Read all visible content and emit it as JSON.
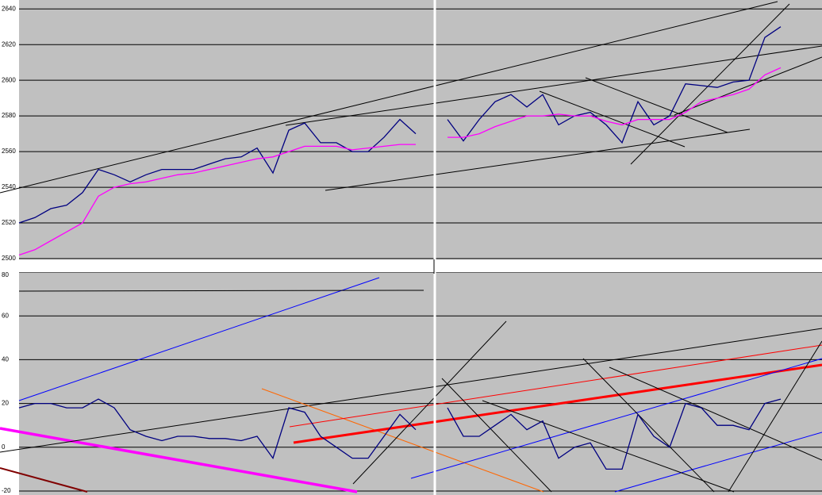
{
  "chart_data": [
    {
      "type": "line",
      "ylim": [
        2500,
        2645
      ],
      "yticks": [
        2500,
        2520,
        2540,
        2560,
        2580,
        2600,
        2620,
        2640
      ],
      "xlim": [
        0,
        50.6
      ],
      "grid": true,
      "series": [
        {
          "color": "#000080",
          "values": [
            2520,
            2523,
            2528,
            2530,
            2537,
            2550,
            2547,
            2543,
            2547,
            2550,
            2550,
            2550,
            2553,
            2556,
            2557,
            2562,
            2548,
            2572,
            2576,
            2565,
            2565,
            2560,
            2560,
            2568,
            2578,
            2570,
            null,
            2578,
            2566,
            2578,
            2588,
            2592,
            2585,
            2592,
            2575,
            2580,
            2582,
            2575,
            2565,
            2588,
            2575,
            2580,
            2598,
            2597,
            2596,
            2599,
            2600,
            2624,
            2630
          ]
        },
        {
          "color": "#ff00ff",
          "values": [
            2502,
            2505,
            2510,
            2515,
            2520,
            2535,
            2540,
            2542,
            2543,
            2545,
            2547,
            2548,
            2550,
            2552,
            2554,
            2556,
            2557,
            2560,
            2563,
            2563,
            2563,
            2561,
            2562,
            2563,
            2564,
            2564,
            null,
            2568,
            2568,
            2570,
            2574,
            2577,
            2580,
            2580,
            2581,
            2580,
            2580,
            2577,
            2575,
            2578,
            2578,
            2578,
            2582,
            2588,
            2590,
            2592,
            2595,
            2603,
            2607
          ]
        }
      ]
    },
    {
      "type": "line",
      "ylim": [
        -20,
        80
      ],
      "yticks": [
        -20,
        0,
        20,
        40,
        60,
        80
      ],
      "xlim": [
        0,
        50.6
      ],
      "grid": true,
      "series": [
        {
          "color": "#000080",
          "values": [
            18,
            20,
            20,
            18,
            18,
            22,
            18,
            8,
            5,
            3,
            5,
            5,
            4,
            4,
            3,
            5,
            -5,
            18,
            16,
            5,
            0,
            -5,
            -5,
            5,
            15,
            8,
            null,
            18,
            5,
            5,
            10,
            15,
            8,
            12,
            -5,
            0,
            2,
            -10,
            -10,
            15,
            5,
            0,
            20,
            18,
            10,
            10,
            8,
            20,
            22
          ]
        }
      ]
    }
  ]
}
